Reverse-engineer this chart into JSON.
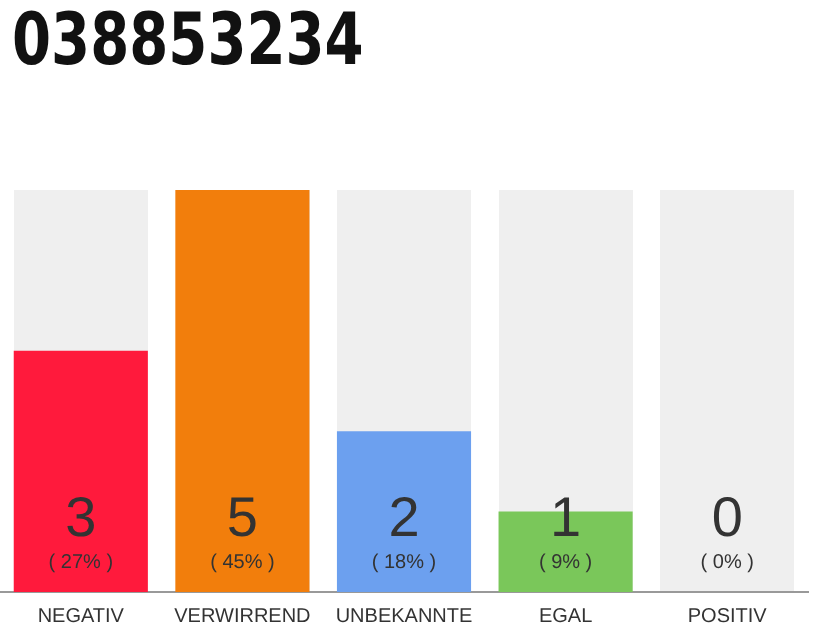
{
  "chart_data": {
    "type": "bar",
    "title": "038853234",
    "categories": [
      "NEGATIV",
      "VERWIRREND",
      "UNBEKANNTE",
      "EGAL",
      "POSITIV"
    ],
    "values": [
      3,
      5,
      2,
      1,
      0
    ],
    "colors": [
      "#ff1a3c",
      "#f27e0c",
      "#6ca0ef",
      "#7ac75a",
      "#bbbbbb"
    ],
    "ylim": [
      0,
      5
    ],
    "tick_labels": "x",
    "grid": false,
    "legend": false,
    "data_labels": true,
    "annotations": [
      "( 27% )",
      "( 45% )",
      "( 18% )",
      "( 9% )",
      "( 0% )"
    ]
  }
}
